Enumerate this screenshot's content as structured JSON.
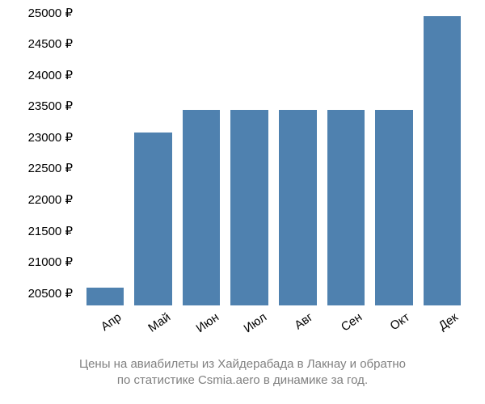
{
  "chart": {
    "type": "bar",
    "background_color": "#ffffff",
    "bar_color": "#4f81af",
    "text_color": "#000000",
    "caption_color": "#808080",
    "currency_symbol": "₽",
    "y_axis": {
      "min": 20300,
      "max": 25100,
      "ticks": [
        20500,
        21000,
        21500,
        22000,
        22500,
        23000,
        23500,
        24000,
        24500,
        25000
      ]
    },
    "categories": [
      "Апр",
      "Май",
      "Июн",
      "Июл",
      "Авг",
      "Сен",
      "Окт",
      "Дек"
    ],
    "values": [
      20580,
      23080,
      23440,
      23440,
      23440,
      23440,
      23440,
      24950
    ],
    "bar_width_ratio": 0.78,
    "x_label_rotation_deg": -35,
    "label_fontsize": 15,
    "caption_fontsize": 15,
    "caption_line1": "Цены на авиабилеты из Хайдерабада в Лакнау и обратно",
    "caption_line2": "по статистике Csmia.aero в динамике за год."
  }
}
